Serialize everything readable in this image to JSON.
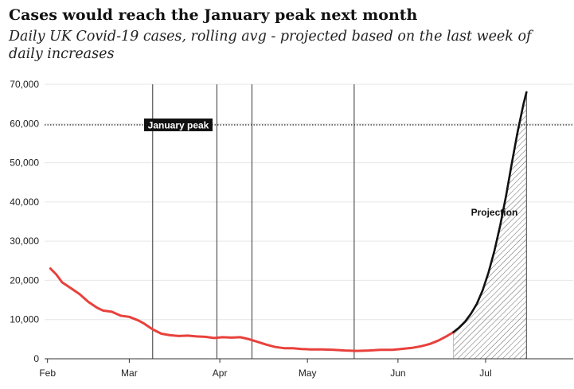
{
  "header": {
    "title": "Cases would reach the January peak next month",
    "subtitle": "Daily UK Covid-19 cases, rolling avg - projected based on the last week of daily increases"
  },
  "colors": {
    "actual": "#e8413c",
    "projection": "#111111",
    "gridline": "#e6e6e6",
    "event_line": "#555555",
    "peak_line": "#333333"
  },
  "chart_data": {
    "type": "line",
    "title": "Cases would reach the January peak next month",
    "subtitle": "Daily UK Covid-19 cases, rolling avg - projected based on the last week of daily increases",
    "xlabel": "",
    "ylabel": "",
    "x_range": [
      "2021-01-31",
      "2021-07-31"
    ],
    "ylim": [
      0,
      70000
    ],
    "y_ticks": [
      0,
      10000,
      20000,
      30000,
      40000,
      50000,
      60000,
      70000
    ],
    "y_tick_labels": [
      "0",
      "10,000",
      "20,000",
      "30,000",
      "40,000",
      "50,000",
      "60,000",
      "70,000"
    ],
    "x_ticks": [
      {
        "date": "2021-02-01",
        "label": "Feb"
      },
      {
        "date": "2021-03-01",
        "label": "Mar"
      },
      {
        "date": "2021-04-01",
        "label": "Apr"
      },
      {
        "date": "2021-05-01",
        "label": "May"
      },
      {
        "date": "2021-06-01",
        "label": "Jun"
      },
      {
        "date": "2021-07-01",
        "label": "Jul"
      }
    ],
    "grid": "horizontal",
    "series": [
      {
        "role": "actual",
        "points": [
          [
            "2021-02-02",
            23000
          ],
          [
            "2021-02-04",
            21500
          ],
          [
            "2021-02-06",
            19500
          ],
          [
            "2021-02-09",
            18000
          ],
          [
            "2021-02-12",
            16500
          ],
          [
            "2021-02-15",
            14500
          ],
          [
            "2021-02-18",
            13000
          ],
          [
            "2021-02-20",
            12300
          ],
          [
            "2021-02-23",
            12000
          ],
          [
            "2021-02-26",
            11000
          ],
          [
            "2021-03-01",
            10700
          ],
          [
            "2021-03-04",
            9800
          ],
          [
            "2021-03-06",
            9000
          ],
          [
            "2021-03-09",
            7500
          ],
          [
            "2021-03-12",
            6400
          ],
          [
            "2021-03-15",
            6000
          ],
          [
            "2021-03-18",
            5800
          ],
          [
            "2021-03-21",
            5900
          ],
          [
            "2021-03-24",
            5700
          ],
          [
            "2021-03-27",
            5600
          ],
          [
            "2021-03-30",
            5300
          ],
          [
            "2021-04-02",
            5500
          ],
          [
            "2021-04-05",
            5400
          ],
          [
            "2021-04-08",
            5500
          ],
          [
            "2021-04-11",
            5000
          ],
          [
            "2021-04-14",
            4300
          ],
          [
            "2021-04-17",
            3600
          ],
          [
            "2021-04-20",
            3000
          ],
          [
            "2021-04-23",
            2700
          ],
          [
            "2021-04-26",
            2700
          ],
          [
            "2021-04-29",
            2500
          ],
          [
            "2021-05-02",
            2400
          ],
          [
            "2021-05-06",
            2400
          ],
          [
            "2021-05-10",
            2300
          ],
          [
            "2021-05-14",
            2100
          ],
          [
            "2021-05-18",
            2000
          ],
          [
            "2021-05-22",
            2100
          ],
          [
            "2021-05-26",
            2300
          ],
          [
            "2021-05-30",
            2300
          ],
          [
            "2021-06-02",
            2500
          ],
          [
            "2021-06-06",
            2800
          ],
          [
            "2021-06-09",
            3200
          ],
          [
            "2021-06-12",
            3800
          ],
          [
            "2021-06-15",
            4700
          ],
          [
            "2021-06-18",
            5900
          ],
          [
            "2021-06-20",
            6800
          ]
        ]
      },
      {
        "role": "projection",
        "points": [
          [
            "2021-06-20",
            6800
          ],
          [
            "2021-06-22",
            8000
          ],
          [
            "2021-06-24",
            9500
          ],
          [
            "2021-06-26",
            11500
          ],
          [
            "2021-06-28",
            14000
          ],
          [
            "2021-06-30",
            17500
          ],
          [
            "2021-07-02",
            22000
          ],
          [
            "2021-07-04",
            27500
          ],
          [
            "2021-07-06",
            34000
          ],
          [
            "2021-07-08",
            41500
          ],
          [
            "2021-07-10",
            50000
          ],
          [
            "2021-07-12",
            58000
          ],
          [
            "2021-07-14",
            65000
          ],
          [
            "2021-07-15",
            68000
          ]
        ]
      }
    ],
    "vertical_lines": [
      "2021-03-09",
      "2021-03-31",
      "2021-04-12",
      "2021-05-17"
    ],
    "reference_lines": [
      {
        "y": 59660,
        "style": "dotted",
        "label": "January peak"
      }
    ],
    "annotations": [
      {
        "text": "Projection",
        "x": "2021-07-04",
        "y": 36500
      }
    ]
  }
}
